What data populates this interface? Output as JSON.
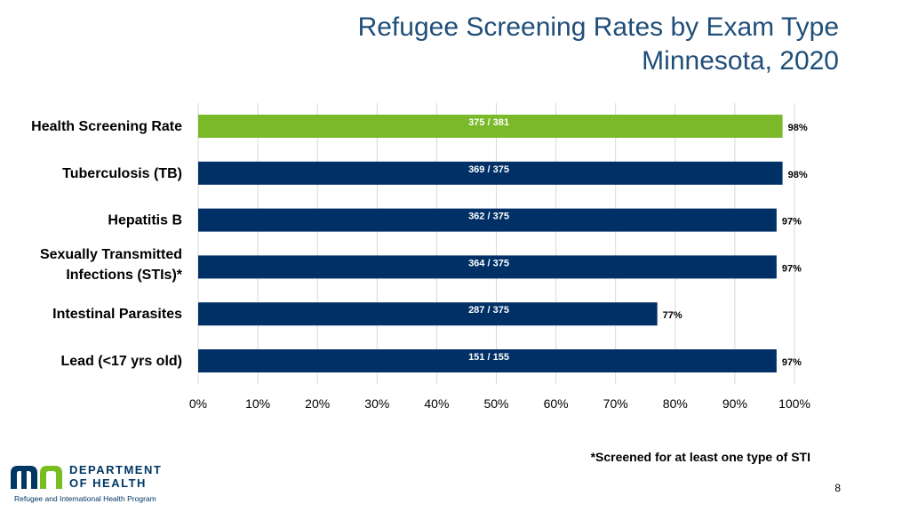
{
  "chart_data": {
    "type": "bar",
    "orientation": "horizontal",
    "title": "Refugee Screening Rates by Exam Type",
    "subtitle": "Minnesota, 2020",
    "categories": [
      "Health Screening Rate",
      "Tuberculosis (TB)",
      "Hepatitis B",
      "Sexually Transmitted Infections (STIs)*",
      "Intestinal Parasites",
      "Lead (<17 yrs old)"
    ],
    "category_lines": [
      [
        "Health Screening Rate"
      ],
      [
        "Tuberculosis (TB)"
      ],
      [
        "Hepatitis B"
      ],
      [
        "Sexually Transmitted",
        "Infections (STIs)*"
      ],
      [
        "Intestinal Parasites"
      ],
      [
        "Lead (<17 yrs old)"
      ]
    ],
    "values": [
      98,
      98,
      97,
      97,
      77,
      97
    ],
    "value_labels": [
      "98%",
      "98%",
      "97%",
      "97%",
      "77%",
      "97%"
    ],
    "count_labels": [
      "375 / 381",
      "369 / 375",
      "362 / 375",
      "364 / 375",
      "287 / 375",
      "151 / 155"
    ],
    "bar_colors": [
      "#7ab929",
      "#003066",
      "#003066",
      "#003066",
      "#003066",
      "#003066"
    ],
    "xlim": [
      0,
      100
    ],
    "xticks": [
      "0%",
      "10%",
      "20%",
      "30%",
      "40%",
      "50%",
      "60%",
      "70%",
      "80%",
      "90%",
      "100%"
    ],
    "grid": true,
    "xlabel": "",
    "ylabel": ""
  },
  "footnote": "*Screened for at least one type of STI",
  "page_number": "8",
  "logo": {
    "mark": "mn",
    "line1": "DEPARTMENT",
    "line2": "OF HEALTH",
    "subtitle": "Refugee and International Health Program"
  },
  "colors": {
    "title": "#1f4e79",
    "accent_green": "#7ab929",
    "bar_navy": "#003066",
    "logo_blue": "#003865",
    "logo_green": "#78be20"
  }
}
